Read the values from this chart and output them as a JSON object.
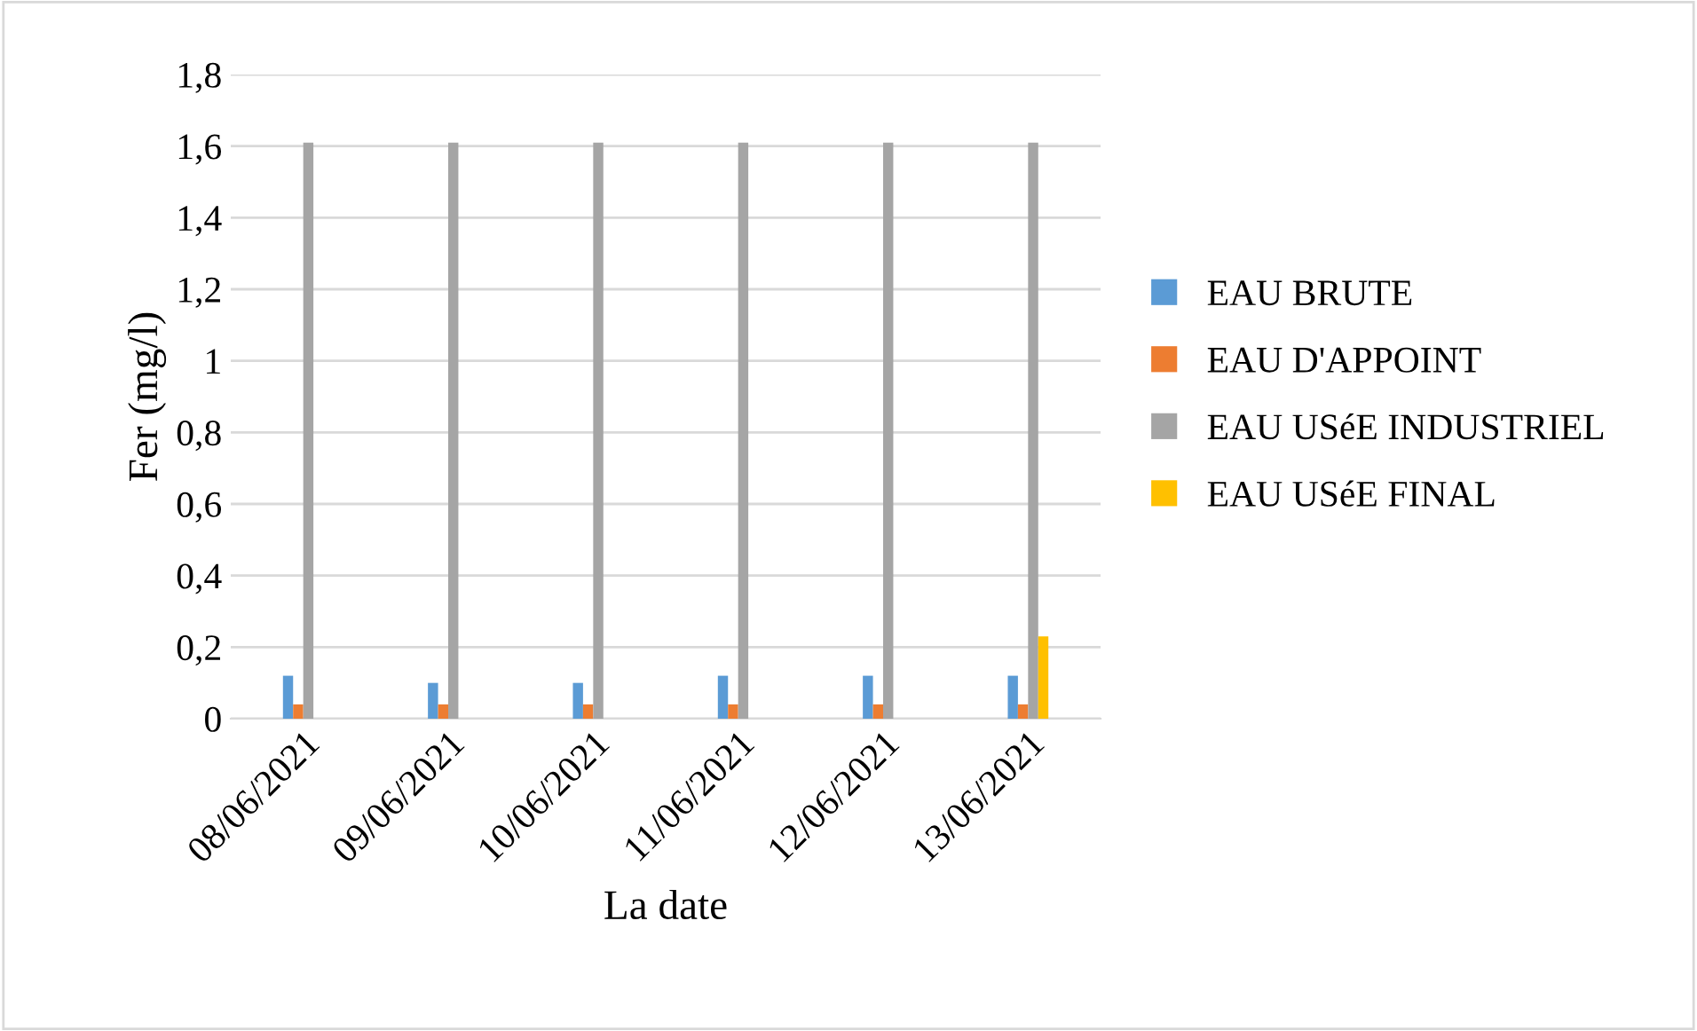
{
  "chart_data": {
    "type": "bar",
    "xlabel": "La date",
    "ylabel": "Fer (mg/l)",
    "categories": [
      "08/06/2021",
      "09/06/2021",
      "10/06/2021",
      "11/06/2021",
      "12/06/2021",
      "13/06/2021"
    ],
    "series": [
      {
        "name": "EAU BRUTE",
        "color": "#5b9bd5",
        "values": [
          0.12,
          0.1,
          0.1,
          0.12,
          0.12,
          0.12
        ]
      },
      {
        "name": "EAU D'APPOINT",
        "color": "#ed7d31",
        "values": [
          0.04,
          0.04,
          0.04,
          0.04,
          0.04,
          0.04
        ]
      },
      {
        "name": "EAU USéE INDUSTRIEL",
        "color": "#a5a5a5",
        "values": [
          1.61,
          1.61,
          1.61,
          1.61,
          1.61,
          1.61
        ]
      },
      {
        "name": "EAU USéE FINAL",
        "color": "#ffc000",
        "values": [
          0,
          0,
          0,
          0,
          0,
          0.23
        ]
      }
    ],
    "ylim": [
      0,
      1.8
    ],
    "yticks": [
      0,
      {
        "value": 0.2,
        "label": "0,2"
      },
      {
        "value": 0.4,
        "label": "0,4"
      },
      {
        "value": 0.6,
        "label": "0,6"
      },
      {
        "value": 0.8,
        "label": "0,8"
      },
      1,
      {
        "value": 1.2,
        "label": "1,2"
      },
      {
        "value": 1.4,
        "label": "1,4"
      },
      {
        "value": 1.6,
        "label": "1,6"
      },
      {
        "value": 1.8,
        "label": "1,8"
      }
    ],
    "grid": "y",
    "legend": "right"
  }
}
